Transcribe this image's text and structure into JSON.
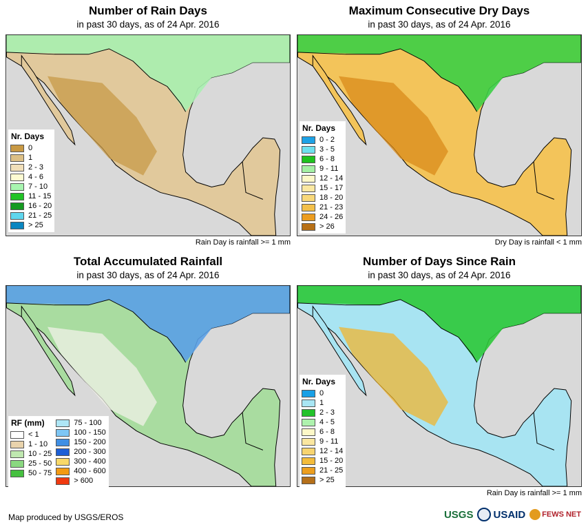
{
  "panels": [
    {
      "id": "rain-days",
      "title": "Number of Rain Days",
      "subtitle": "in past 30 days, as of 24 Apr. 2016",
      "note": "Rain Day is rainfall >= 1 mm",
      "land_color": "#e1c99c",
      "north_color": "#a8f0b0",
      "accent_color": "#c79a48",
      "legend": {
        "title": "Nr. Days",
        "items": [
          {
            "label": "0",
            "color": "#c89944"
          },
          {
            "label": "1",
            "color": "#dcbf85"
          },
          {
            "label": "2 - 3",
            "color": "#f1dfb9"
          },
          {
            "label": "4 - 6",
            "color": "#fdfbd2"
          },
          {
            "label": "7 - 10",
            "color": "#a8f5b0"
          },
          {
            "label": "11 - 15",
            "color": "#22c326"
          },
          {
            "label": "16 - 20",
            "color": "#159a20"
          },
          {
            "label": "21 - 25",
            "color": "#5fd6ee"
          },
          {
            "label": "> 25",
            "color": "#0a86c0"
          }
        ]
      }
    },
    {
      "id": "max-dry-days",
      "title": "Maximum Consecutive Dry Days",
      "subtitle": "in past 30 days, as of 24 Apr. 2016",
      "note": "Dry Day is rainfall < 1 mm",
      "land_color": "#f3c45a",
      "north_color": "#3ccf45",
      "accent_color": "#d98b1b",
      "legend": {
        "title": "Nr. Days",
        "items": [
          {
            "label": "0 - 2",
            "color": "#1ea2e6"
          },
          {
            "label": "3 - 5",
            "color": "#6fe0ee"
          },
          {
            "label": "6 - 8",
            "color": "#1ec21e"
          },
          {
            "label": "9 - 11",
            "color": "#a4f0a4"
          },
          {
            "label": "12 - 14",
            "color": "#fdf8c8"
          },
          {
            "label": "15 - 17",
            "color": "#fbe8a2"
          },
          {
            "label": "18 - 20",
            "color": "#f8d87a"
          },
          {
            "label": "21 - 23",
            "color": "#f3c04a"
          },
          {
            "label": "24 - 26",
            "color": "#ec9d20"
          },
          {
            "label": "> 26",
            "color": "#b77016"
          }
        ]
      }
    },
    {
      "id": "total-rainfall",
      "title": "Total Accumulated Rainfall",
      "subtitle": "in past 30 days, as of 24 Apr. 2016",
      "note": "",
      "land_color": "#a9dca0",
      "north_color": "#5aa0e6",
      "accent_color": "#f2f2e8",
      "legend": {
        "title": "RF (mm)",
        "items": [
          {
            "label": "< 1",
            "color": "#ffffff"
          },
          {
            "label": "1 - 10",
            "color": "#e9d3ac"
          },
          {
            "label": "10 - 25",
            "color": "#bfe8b0"
          },
          {
            "label": "25 - 50",
            "color": "#8ad880"
          },
          {
            "label": "50 - 75",
            "color": "#46c040"
          },
          {
            "label": "75 - 100",
            "color": "#aee6f6"
          },
          {
            "label": "100 - 150",
            "color": "#7ec6f4"
          },
          {
            "label": "150 - 200",
            "color": "#3f8fe4"
          },
          {
            "label": "200 - 300",
            "color": "#1c5fd6"
          },
          {
            "label": "300 - 400",
            "color": "#f8d868"
          },
          {
            "label": "400 - 600",
            "color": "#f39a12"
          },
          {
            "label": "> 600",
            "color": "#f03a10"
          }
        ]
      }
    },
    {
      "id": "days-since-rain",
      "title": "Number of Days Since Rain",
      "subtitle": "in past 30 days, as of 24 Apr. 2016",
      "note": "Rain Day is rainfall >= 1 mm",
      "land_color": "#a8e4f2",
      "north_color": "#2cc838",
      "accent_color": "#f0b630",
      "legend": {
        "title": "Nr. Days",
        "items": [
          {
            "label": "0",
            "color": "#1aa0e6"
          },
          {
            "label": "1",
            "color": "#a8e6f4"
          },
          {
            "label": "2 - 3",
            "color": "#22c22a"
          },
          {
            "label": "4 - 5",
            "color": "#aef2ae"
          },
          {
            "label": "6 - 8",
            "color": "#fdf8c8"
          },
          {
            "label": "9 - 11",
            "color": "#fbe7a0"
          },
          {
            "label": "12 - 14",
            "color": "#f7d470"
          },
          {
            "label": "15 - 20",
            "color": "#f3bc3c"
          },
          {
            "label": "21 - 25",
            "color": "#ec9e1e"
          },
          {
            "label": "> 25",
            "color": "#b5701a"
          }
        ]
      }
    }
  ],
  "footer": {
    "credit": "Map produced by USGS/EROS",
    "logos": {
      "usgs": "USGS",
      "usaid": "USAID",
      "fews": "FEWS NET"
    }
  }
}
